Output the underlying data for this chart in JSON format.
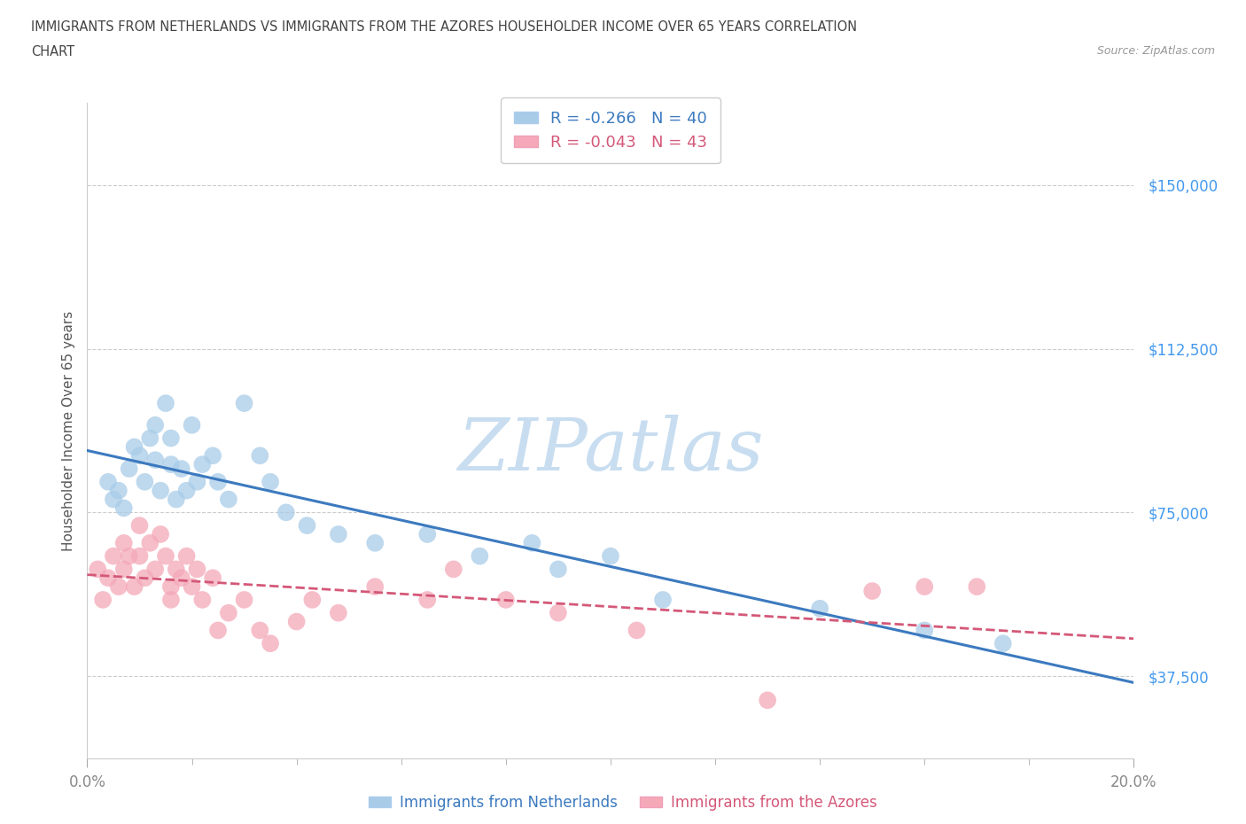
{
  "title_line1": "IMMIGRANTS FROM NETHERLANDS VS IMMIGRANTS FROM THE AZORES HOUSEHOLDER INCOME OVER 65 YEARS CORRELATION",
  "title_line2": "CHART",
  "source_text": "Source: ZipAtlas.com",
  "xlabel_bottom": "Immigrants from Netherlands",
  "xlabel_bottom2": "Immigrants from the Azores",
  "ylabel": "Householder Income Over 65 years",
  "xlim": [
    0.0,
    0.2
  ],
  "ylim": [
    18750,
    168750
  ],
  "yticks": [
    37500,
    75000,
    112500,
    150000
  ],
  "ytick_labels": [
    "$37,500",
    "$75,000",
    "$112,500",
    "$150,000"
  ],
  "xtick_major": [
    0.0,
    0.2
  ],
  "xtick_major_labels": [
    "0.0%",
    "20.0%"
  ],
  "xtick_minor": [
    0.02,
    0.04,
    0.06,
    0.08,
    0.1,
    0.12,
    0.14,
    0.16,
    0.18
  ],
  "legend_text1": "R = -0.266   N = 40",
  "legend_text2": "R = -0.043   N = 43",
  "color_netherlands": "#a8cce8",
  "color_azores": "#f4a8b8",
  "color_netherlands_line": "#3c7abf",
  "color_azores_line": "#d45878",
  "color_title": "#444444",
  "color_ytick": "#4499ee",
  "color_xtick": "#888888",
  "color_source": "#999999",
  "color_watermark": "#c8ddf0",
  "netherlands_x": [
    0.004,
    0.005,
    0.006,
    0.007,
    0.008,
    0.009,
    0.01,
    0.011,
    0.012,
    0.013,
    0.013,
    0.014,
    0.015,
    0.016,
    0.016,
    0.017,
    0.018,
    0.019,
    0.02,
    0.021,
    0.022,
    0.024,
    0.025,
    0.027,
    0.03,
    0.033,
    0.035,
    0.038,
    0.042,
    0.048,
    0.055,
    0.065,
    0.075,
    0.085,
    0.09,
    0.1,
    0.11,
    0.14,
    0.16,
    0.175
  ],
  "netherlands_y": [
    82000,
    78000,
    80000,
    76000,
    85000,
    90000,
    88000,
    82000,
    92000,
    87000,
    95000,
    80000,
    100000,
    86000,
    92000,
    78000,
    85000,
    80000,
    95000,
    82000,
    86000,
    88000,
    82000,
    78000,
    100000,
    88000,
    82000,
    75000,
    72000,
    70000,
    68000,
    70000,
    65000,
    68000,
    62000,
    65000,
    55000,
    53000,
    48000,
    45000
  ],
  "azores_x": [
    0.002,
    0.003,
    0.004,
    0.005,
    0.006,
    0.007,
    0.007,
    0.008,
    0.009,
    0.01,
    0.01,
    0.011,
    0.012,
    0.013,
    0.014,
    0.015,
    0.016,
    0.016,
    0.017,
    0.018,
    0.019,
    0.02,
    0.021,
    0.022,
    0.024,
    0.025,
    0.027,
    0.03,
    0.033,
    0.035,
    0.04,
    0.043,
    0.048,
    0.055,
    0.065,
    0.07,
    0.08,
    0.09,
    0.105,
    0.13,
    0.15,
    0.16,
    0.17
  ],
  "azores_y": [
    62000,
    55000,
    60000,
    65000,
    58000,
    68000,
    62000,
    65000,
    58000,
    72000,
    65000,
    60000,
    68000,
    62000,
    70000,
    65000,
    58000,
    55000,
    62000,
    60000,
    65000,
    58000,
    62000,
    55000,
    60000,
    48000,
    52000,
    55000,
    48000,
    45000,
    50000,
    55000,
    52000,
    58000,
    55000,
    62000,
    55000,
    52000,
    48000,
    32000,
    57000,
    58000,
    58000
  ]
}
